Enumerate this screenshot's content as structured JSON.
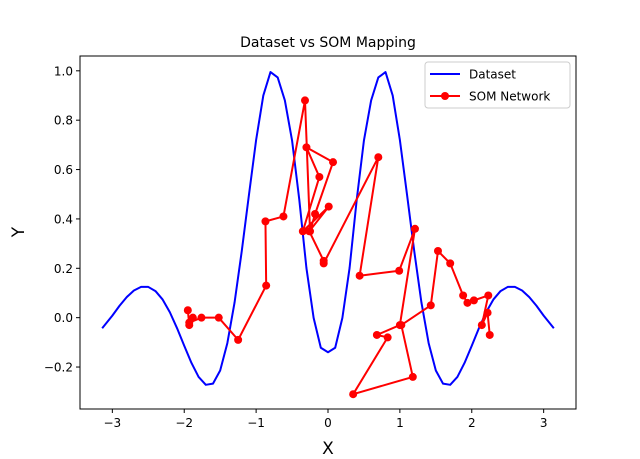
{
  "chart_data": {
    "type": "line",
    "title": "Dataset vs SOM Mapping",
    "xlabel": "X",
    "ylabel": "Y",
    "xlim": [
      -3.45,
      3.45
    ],
    "ylim": [
      -0.37,
      1.06
    ],
    "x_ticks": [
      -3,
      -2,
      -1,
      0,
      1,
      2,
      3
    ],
    "x_tick_labels": [
      "−3",
      "−2",
      "−1",
      "0",
      "1",
      "2",
      "3"
    ],
    "y_ticks": [
      -0.2,
      0.0,
      0.2,
      0.4,
      0.6,
      0.8,
      1.0
    ],
    "y_tick_labels": [
      "−0.2",
      "0.0",
      "0.2",
      "0.4",
      "0.6",
      "0.8",
      "1.0"
    ],
    "grid": false,
    "legend_position": "top-right",
    "series": [
      {
        "name": "Dataset",
        "color": "#0000ff",
        "marker": "none",
        "x": [
          -3.1416,
          -3.0,
          -2.9,
          -2.8,
          -2.7,
          -2.6,
          -2.5,
          -2.4,
          -2.3,
          -2.2,
          -2.1,
          -2.0,
          -1.9,
          -1.8,
          -1.7,
          -1.6,
          -1.5,
          -1.4,
          -1.3,
          -1.2,
          -1.1,
          -1.0,
          -0.9,
          -0.8,
          -0.7,
          -0.6,
          -0.5,
          -0.4,
          -0.3,
          -0.2,
          -0.1,
          0.0,
          0.1,
          0.2,
          0.3,
          0.4,
          0.5,
          0.6,
          0.7,
          0.8,
          0.9,
          1.0,
          1.1,
          1.2,
          1.3,
          1.4,
          1.5,
          1.6,
          1.7,
          1.8,
          1.9,
          2.0,
          2.1,
          2.2,
          2.3,
          2.4,
          2.5,
          2.6,
          2.7,
          2.8,
          2.9,
          3.0,
          3.1416
        ],
        "y": [
          -0.0431,
          0.0082,
          0.0482,
          0.0834,
          0.11,
          0.1246,
          0.1245,
          0.1077,
          0.0733,
          0.022,
          -0.0425,
          -0.1137,
          -0.183,
          -0.24,
          -0.272,
          -0.2672,
          -0.214,
          -0.103,
          0.061,
          0.269,
          0.497,
          0.7197,
          0.8998,
          0.995,
          0.973,
          0.88,
          0.718,
          0.479,
          0.201,
          -0.001,
          -0.122,
          -0.14,
          -0.122,
          -0.001,
          0.201,
          0.479,
          0.718,
          0.88,
          0.973,
          0.995,
          0.8998,
          0.7197,
          0.497,
          0.269,
          0.061,
          -0.103,
          -0.214,
          -0.2672,
          -0.272,
          -0.24,
          -0.183,
          -0.1137,
          -0.0425,
          0.022,
          0.0733,
          0.1077,
          0.1245,
          0.1246,
          0.11,
          0.0834,
          0.0482,
          0.0082,
          -0.0431
        ]
      },
      {
        "name": "SOM Network",
        "color": "#ff0000",
        "marker": "circle",
        "x": [
          -1.95,
          -1.93,
          -1.88,
          -1.93,
          -1.76,
          -1.52,
          -1.25,
          -0.86,
          -0.87,
          -0.62,
          -0.32,
          -0.25,
          -0.18,
          0.07,
          -0.3,
          -0.12,
          -0.35,
          0.01,
          -0.26,
          -0.06,
          -0.06,
          0.7,
          0.44,
          0.99,
          1.21,
          1.0,
          0.68,
          0.83,
          0.35,
          1.18,
          1.02,
          1.43,
          1.53,
          1.7,
          1.88,
          1.94,
          2.03,
          2.23,
          2.14,
          2.22,
          2.25
        ],
        "y": [
          0.03,
          -0.03,
          0.0,
          -0.02,
          0.0,
          0.0,
          -0.09,
          0.13,
          0.39,
          0.41,
          0.88,
          0.35,
          0.42,
          0.63,
          0.69,
          0.57,
          0.35,
          0.45,
          0.35,
          0.23,
          0.22,
          0.65,
          0.17,
          0.19,
          0.36,
          -0.03,
          -0.07,
          -0.08,
          -0.31,
          -0.24,
          -0.03,
          0.05,
          0.27,
          0.22,
          0.09,
          0.06,
          0.07,
          0.09,
          -0.03,
          0.02,
          -0.07
        ]
      }
    ]
  }
}
